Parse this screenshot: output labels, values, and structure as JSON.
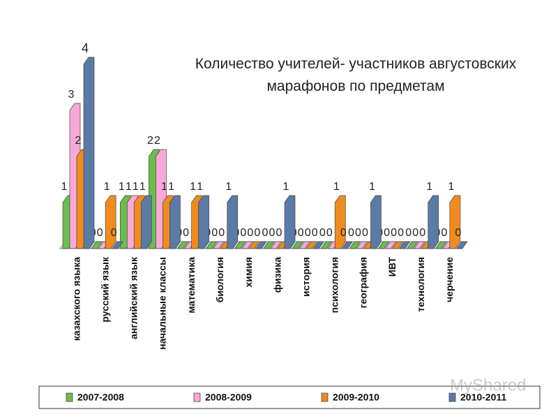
{
  "chart_data": {
    "type": "bar",
    "title": "Количество учителей- участников августовских марафонов по предметам",
    "categories": [
      "казахского языка",
      "русский язык",
      "английский язык",
      "начальные классы",
      "математика",
      "биология",
      "химия",
      "физика",
      "история",
      "психология",
      "география",
      "ИВТ",
      "технология",
      "черчение"
    ],
    "series": [
      {
        "name": "2007-2008",
        "color": "#6abf4b",
        "values": [
          1,
          0,
          1,
          2,
          0,
          0,
          0,
          0,
          0,
          0,
          0,
          0,
          0,
          0
        ]
      },
      {
        "name": "2008-2009",
        "color": "#f9a8d8",
        "values": [
          3,
          0,
          1,
          2,
          0,
          0,
          0,
          0,
          0,
          0,
          0,
          0,
          0,
          0
        ]
      },
      {
        "name": "2009-2010",
        "color": "#f08c1e",
        "values": [
          2,
          1,
          1,
          1,
          1,
          0,
          0,
          0,
          0,
          1,
          0,
          0,
          0,
          1
        ]
      },
      {
        "name": "2010-2011",
        "color": "#5b7ba6",
        "values": [
          4,
          0,
          1,
          1,
          1,
          1,
          0,
          1,
          0,
          0,
          1,
          0,
          1,
          0
        ]
      }
    ],
    "legend": "bottom",
    "watermark": "MyShared"
  }
}
